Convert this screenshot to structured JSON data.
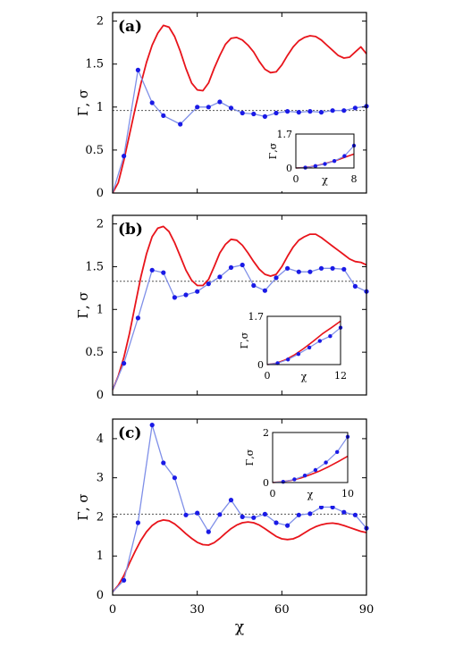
{
  "figure": {
    "x_axis_label": "χ",
    "y_axis_label": "Γ, σ",
    "inset_x_label": "χ",
    "inset_y_label": "Γ,σ"
  },
  "colors": {
    "red_curve": "#e8141b",
    "blue_curve": "#7f8fe8",
    "blue_points": "#1a1ae6",
    "reference_line": "#555555"
  },
  "chart_data": [
    {
      "type": "line",
      "panel": "(a)",
      "xlim": [
        0,
        90
      ],
      "ylim": [
        0,
        2.1
      ],
      "yticks": [
        "0",
        "0.5",
        "1",
        "1.5",
        "2"
      ],
      "ytick_values": [
        0,
        0.5,
        1,
        1.5,
        2
      ],
      "reference_line": 0.96,
      "series": [
        {
          "x": [
            0,
            2,
            4,
            6,
            8,
            10,
            12,
            14,
            16,
            18,
            20,
            22,
            24,
            26,
            28,
            30,
            32,
            34,
            36,
            38,
            40,
            42,
            44,
            46,
            48,
            50,
            52,
            54,
            56,
            58,
            60,
            62,
            64,
            66,
            68,
            70,
            72,
            74,
            76,
            78,
            80,
            82,
            84,
            86,
            88,
            90
          ],
          "values": [
            0,
            0.12,
            0.38,
            0.68,
            0.98,
            1.27,
            1.52,
            1.72,
            1.86,
            1.95,
            1.93,
            1.82,
            1.65,
            1.45,
            1.28,
            1.2,
            1.19,
            1.28,
            1.45,
            1.6,
            1.73,
            1.8,
            1.81,
            1.78,
            1.72,
            1.64,
            1.53,
            1.44,
            1.4,
            1.41,
            1.49,
            1.6,
            1.7,
            1.77,
            1.81,
            1.83,
            1.82,
            1.78,
            1.72,
            1.66,
            1.6,
            1.57,
            1.58,
            1.64,
            1.7,
            1.62
          ]
        },
        {
          "x": [
            0,
            4,
            9,
            14,
            18,
            24,
            30,
            34,
            38,
            42,
            46,
            50,
            54,
            58,
            62,
            66,
            70,
            74,
            78,
            82,
            86,
            90
          ],
          "values": [
            0,
            0.43,
            1.43,
            1.05,
            0.9,
            0.8,
            1.0,
            1.0,
            1.06,
            0.99,
            0.93,
            0.92,
            0.89,
            0.93,
            0.95,
            0.94,
            0.95,
            0.94,
            0.96,
            0.96,
            0.99,
            1.01
          ]
        }
      ],
      "inset": {
        "xlim": [
          0,
          8
        ],
        "ylim": [
          0,
          1.7
        ],
        "xticks": [
          "0",
          "8"
        ],
        "yticks": [
          "0",
          "1.7"
        ],
        "red": {
          "x": [
            0,
            1,
            2,
            3,
            4,
            5,
            6,
            7,
            8
          ],
          "values": [
            0,
            0.02,
            0.06,
            0.13,
            0.22,
            0.32,
            0.44,
            0.57,
            0.7
          ]
        },
        "blue": {
          "x": [
            0,
            1.3,
            2.7,
            4,
            5.3,
            6.7,
            8
          ],
          "values": [
            0,
            0.02,
            0.1,
            0.2,
            0.35,
            0.6,
            1.12
          ]
        }
      }
    },
    {
      "type": "line",
      "panel": "(b)",
      "xlim": [
        0,
        90
      ],
      "ylim": [
        0,
        2.1
      ],
      "yticks": [
        "0",
        "0.5",
        "1",
        "1.5",
        "2"
      ],
      "ytick_values": [
        0,
        0.5,
        1,
        1.5,
        2
      ],
      "reference_line": 1.33,
      "series": [
        {
          "x": [
            0,
            2,
            4,
            6,
            8,
            10,
            12,
            14,
            16,
            18,
            20,
            22,
            24,
            26,
            28,
            30,
            32,
            34,
            36,
            38,
            40,
            42,
            44,
            46,
            48,
            50,
            52,
            54,
            56,
            58,
            60,
            62,
            64,
            66,
            68,
            70,
            72,
            74,
            76,
            78,
            80,
            82,
            84,
            86,
            88,
            90
          ],
          "values": [
            0.06,
            0.22,
            0.44,
            0.72,
            1.05,
            1.38,
            1.65,
            1.85,
            1.95,
            1.97,
            1.91,
            1.78,
            1.62,
            1.46,
            1.34,
            1.28,
            1.28,
            1.35,
            1.5,
            1.66,
            1.76,
            1.82,
            1.81,
            1.75,
            1.66,
            1.56,
            1.47,
            1.41,
            1.39,
            1.41,
            1.5,
            1.62,
            1.73,
            1.81,
            1.85,
            1.88,
            1.88,
            1.84,
            1.79,
            1.74,
            1.69,
            1.64,
            1.59,
            1.56,
            1.55,
            1.52
          ]
        },
        {
          "x": [
            0,
            4,
            9,
            14,
            18,
            22,
            26,
            30,
            34,
            38,
            42,
            46,
            50,
            54,
            58,
            62,
            66,
            70,
            74,
            78,
            82,
            86,
            90
          ],
          "values": [
            0.06,
            0.37,
            0.9,
            1.46,
            1.43,
            1.14,
            1.17,
            1.21,
            1.3,
            1.38,
            1.49,
            1.52,
            1.28,
            1.22,
            1.37,
            1.48,
            1.44,
            1.44,
            1.48,
            1.48,
            1.47,
            1.27,
            1.21
          ]
        }
      ],
      "inset": {
        "xlim": [
          0,
          12
        ],
        "ylim": [
          0,
          1.7
        ],
        "xticks": [
          "0",
          "12"
        ],
        "yticks": [
          "0",
          "1.7"
        ],
        "red": {
          "x": [
            0,
            1.5,
            3,
            4.5,
            6,
            7.5,
            9,
            10.5,
            12
          ],
          "values": [
            0,
            0.05,
            0.17,
            0.35,
            0.57,
            0.82,
            1.08,
            1.3,
            1.53
          ]
        },
        "blue": {
          "x": [
            0,
            1.7,
            3.4,
            5.1,
            6.9,
            8.6,
            10.3,
            12
          ],
          "values": [
            0,
            0.05,
            0.18,
            0.37,
            0.6,
            0.83,
            1.0,
            1.3
          ]
        }
      }
    },
    {
      "type": "line",
      "panel": "(c)",
      "xlim": [
        0,
        90
      ],
      "ylim": [
        0,
        4.5
      ],
      "xticks": [
        "0",
        "30",
        "60",
        "90"
      ],
      "xtick_values": [
        0,
        30,
        60,
        90
      ],
      "yticks": [
        "0",
        "1",
        "2",
        "3",
        "4"
      ],
      "ytick_values": [
        0,
        1,
        2,
        3,
        4
      ],
      "reference_line": 2.07,
      "series": [
        {
          "x": [
            0,
            2,
            4,
            6,
            8,
            10,
            12,
            14,
            16,
            18,
            20,
            22,
            24,
            26,
            28,
            30,
            32,
            34,
            36,
            38,
            40,
            42,
            44,
            46,
            48,
            50,
            52,
            54,
            56,
            58,
            60,
            62,
            64,
            66,
            68,
            70,
            72,
            74,
            76,
            78,
            80,
            82,
            84,
            86,
            88,
            90
          ],
          "values": [
            0.08,
            0.25,
            0.5,
            0.82,
            1.12,
            1.4,
            1.62,
            1.78,
            1.88,
            1.92,
            1.9,
            1.82,
            1.7,
            1.57,
            1.45,
            1.35,
            1.29,
            1.28,
            1.34,
            1.45,
            1.58,
            1.7,
            1.79,
            1.85,
            1.87,
            1.85,
            1.79,
            1.7,
            1.6,
            1.5,
            1.44,
            1.42,
            1.44,
            1.5,
            1.59,
            1.68,
            1.75,
            1.8,
            1.83,
            1.84,
            1.82,
            1.78,
            1.73,
            1.68,
            1.63,
            1.6
          ]
        },
        {
          "x": [
            0,
            4,
            9,
            14,
            18,
            22,
            26,
            30,
            34,
            38,
            42,
            46,
            50,
            54,
            58,
            62,
            66,
            70,
            74,
            78,
            82,
            86,
            90
          ],
          "values": [
            0.08,
            0.38,
            1.85,
            4.35,
            3.38,
            3.0,
            2.05,
            2.1,
            1.62,
            2.06,
            2.43,
            2.0,
            1.98,
            2.07,
            1.85,
            1.78,
            2.05,
            2.08,
            2.25,
            2.25,
            2.12,
            2.05,
            1.71
          ]
        }
      ],
      "inset": {
        "xlim": [
          0,
          10
        ],
        "ylim": [
          0,
          2
        ],
        "xticks": [
          "0",
          "10"
        ],
        "yticks": [
          "0",
          "2"
        ],
        "red": {
          "x": [
            0,
            1.25,
            2.5,
            3.75,
            5,
            6.25,
            7.5,
            8.75,
            10
          ],
          "values": [
            0,
            0.03,
            0.09,
            0.18,
            0.31,
            0.46,
            0.64,
            0.84,
            1.05
          ]
        },
        "blue": {
          "x": [
            0,
            1.4,
            2.9,
            4.3,
            5.7,
            7.1,
            8.6,
            10
          ],
          "values": [
            0,
            0.03,
            0.13,
            0.28,
            0.5,
            0.8,
            1.22,
            1.83
          ]
        }
      }
    }
  ]
}
